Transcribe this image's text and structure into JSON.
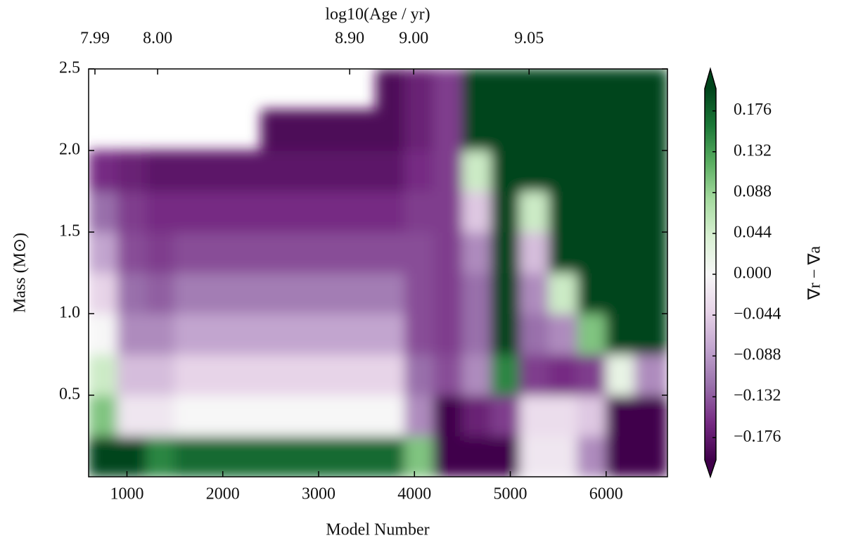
{
  "chart_data": {
    "type": "heatmap",
    "xlabel": "Model Number",
    "ylabel": "Mass (M⊙)",
    "x2label": "log10(Age / yr)",
    "colorbar_label": "∇r − ∇a",
    "xlim": [
      600,
      6640
    ],
    "ylim": [
      0,
      2.5
    ],
    "xticks": [
      1000,
      2000,
      3000,
      4000,
      5000,
      6000
    ],
    "yticks": [
      0.5,
      {
        "value": 1,
        "label": "1.0"
      },
      1.5,
      {
        "value": 2,
        "label": "2.0"
      },
      2.5
    ],
    "x2ticks": [
      {
        "value": 666,
        "label": "7.99"
      },
      {
        "value": 1320,
        "label": "8.00"
      },
      {
        "value": 3324,
        "label": "8.90"
      },
      {
        "value": 3992,
        "label": "9.00"
      },
      {
        "value": 5196,
        "label": "9.05"
      }
    ],
    "clim": [
      -0.2,
      0.2
    ],
    "cticks": [
      0.176,
      0.132,
      0.088,
      0.044,
      {
        "value": 0,
        "label": "0.000"
      },
      {
        "value": -0.044,
        "label": "−0.044"
      },
      {
        "value": -0.088,
        "label": "−0.088"
      },
      {
        "value": -0.132,
        "label": "−0.132"
      },
      {
        "value": -0.176,
        "label": "−0.176"
      }
    ],
    "colormap": [
      "#40004b",
      "#762a83",
      "#9970ab",
      "#c2a5cf",
      "#e7d4e8",
      "#f7f7f7",
      "#d9f0d3",
      "#a6dba0",
      "#5aae61",
      "#1b7837",
      "#00441b"
    ],
    "x": [
      750,
      1050,
      1350,
      1650,
      1950,
      2250,
      2550,
      2850,
      3150,
      3450,
      3750,
      4050,
      4350,
      4650,
      4950,
      5250,
      5550,
      5850,
      6150,
      6450
    ],
    "y": [
      0.125,
      0.375,
      0.625,
      0.875,
      1.125,
      1.375,
      1.625,
      1.875,
      2.125,
      2.375
    ],
    "z": [
      [
        0.2,
        0.2,
        0.15,
        0.17,
        0.17,
        0.17,
        0.17,
        0.17,
        0.17,
        0.17,
        0.17,
        0.1,
        -0.2,
        -0.2,
        -0.2,
        -0.02,
        -0.02,
        -0.1,
        -0.2,
        -0.2
      ],
      [
        0.1,
        -0.02,
        -0.02,
        0,
        0,
        0,
        0,
        0,
        0,
        0,
        0,
        -0.1,
        -0.2,
        -0.17,
        -0.15,
        -0.03,
        -0.03,
        -0.05,
        -0.2,
        -0.2
      ],
      [
        0.05,
        -0.06,
        -0.06,
        -0.04,
        -0.04,
        -0.04,
        -0.04,
        -0.04,
        -0.04,
        -0.04,
        -0.04,
        -0.12,
        -0.14,
        -0.1,
        0.15,
        -0.15,
        -0.16,
        -0.15,
        0.02,
        -0.1
      ],
      [
        0,
        -0.1,
        -0.1,
        -0.08,
        -0.08,
        -0.08,
        -0.08,
        -0.08,
        -0.08,
        -0.08,
        -0.08,
        -0.14,
        -0.15,
        -0.12,
        0.2,
        -0.12,
        -0.1,
        0.1,
        0.2,
        0.2
      ],
      [
        -0.04,
        -0.12,
        -0.13,
        -0.11,
        -0.11,
        -0.11,
        -0.11,
        -0.11,
        -0.11,
        -0.11,
        -0.11,
        -0.14,
        -0.15,
        -0.12,
        0.2,
        -0.1,
        0.05,
        0.2,
        0.2,
        0.2
      ],
      [
        -0.08,
        -0.14,
        -0.15,
        -0.14,
        -0.14,
        -0.14,
        -0.14,
        -0.14,
        -0.14,
        -0.14,
        -0.14,
        -0.14,
        -0.15,
        -0.1,
        0.2,
        -0.06,
        0.2,
        0.2,
        0.2,
        0.2
      ],
      [
        -0.12,
        -0.15,
        -0.16,
        -0.16,
        -0.16,
        -0.16,
        -0.16,
        -0.16,
        -0.16,
        -0.16,
        -0.16,
        -0.15,
        -0.15,
        -0.05,
        0.2,
        0.05,
        0.2,
        0.2,
        0.2,
        0.2
      ],
      [
        -0.16,
        -0.17,
        -0.18,
        -0.18,
        -0.18,
        -0.18,
        -0.18,
        -0.18,
        -0.18,
        -0.18,
        -0.18,
        -0.16,
        -0.15,
        0.05,
        0.2,
        0.2,
        0.2,
        0.2,
        0.2,
        0.2
      ],
      [
        null,
        null,
        null,
        null,
        null,
        null,
        -0.19,
        -0.19,
        -0.19,
        -0.19,
        -0.19,
        -0.17,
        -0.15,
        0.2,
        0.2,
        0.2,
        0.2,
        0.2,
        0.2,
        0.2
      ],
      [
        null,
        null,
        null,
        null,
        null,
        null,
        null,
        null,
        null,
        null,
        -0.19,
        -0.17,
        -0.15,
        0.2,
        0.2,
        0.2,
        0.2,
        0.2,
        0.2,
        0.2
      ]
    ]
  }
}
